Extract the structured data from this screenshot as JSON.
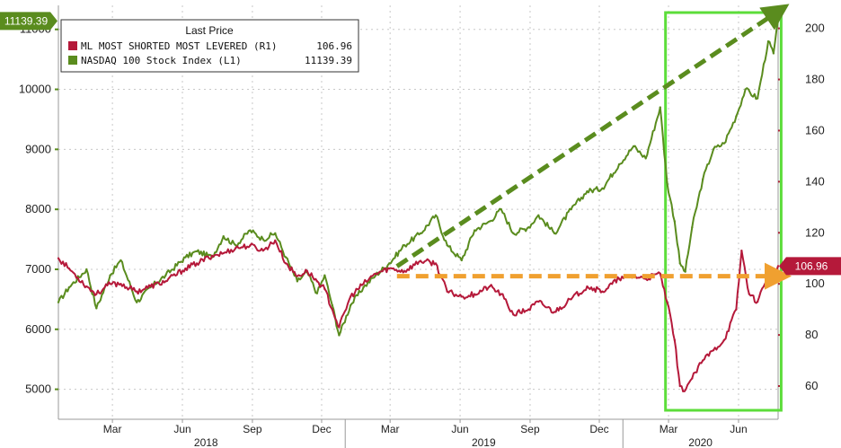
{
  "chart_data": {
    "type": "line",
    "legend": {
      "title": "Last Price",
      "placement": "top-left",
      "entries": [
        {
          "label": "ML MOST SHORTED MOST LEVERED (R1)",
          "value": "106.96",
          "color": "#b5193a"
        },
        {
          "label": "NASDAQ 100 Stock Index (L1)",
          "value": "11139.39",
          "color": "#5a8c1e"
        }
      ]
    },
    "last_value_badges": {
      "left": "11139.39",
      "right": "106.96"
    },
    "left_axis": {
      "ticks": [
        5000,
        6000,
        7000,
        8000,
        9000,
        10000,
        11000
      ],
      "range": [
        4500,
        11400
      ]
    },
    "right_axis": {
      "ticks": [
        60,
        80,
        100,
        120,
        140,
        160,
        180,
        200
      ],
      "range": [
        47,
        209
      ]
    },
    "x_axis": {
      "start": "2017-12-20",
      "end": "2020-07-23",
      "month_ticks": [
        {
          "label": "Mar",
          "date": "2018-03-01"
        },
        {
          "label": "Jun",
          "date": "2018-06-01"
        },
        {
          "label": "Sep",
          "date": "2018-09-01"
        },
        {
          "label": "Dec",
          "date": "2018-12-01"
        },
        {
          "label": "Mar",
          "date": "2019-03-01"
        },
        {
          "label": "Jun",
          "date": "2019-06-01"
        },
        {
          "label": "Sep",
          "date": "2019-09-01"
        },
        {
          "label": "Dec",
          "date": "2019-12-01"
        },
        {
          "label": "Mar",
          "date": "2020-03-01"
        },
        {
          "label": "Jun",
          "date": "2020-06-01"
        }
      ],
      "year_labels": [
        {
          "label": "2018",
          "start": "2018-01-01",
          "end": "2018-12-31"
        },
        {
          "label": "2019",
          "start": "2019-01-01",
          "end": "2019-12-31"
        },
        {
          "label": "2020",
          "start": "2020-01-01",
          "end": "2020-07-23"
        }
      ]
    },
    "grid": true,
    "series": [
      {
        "name": "NASDAQ 100 Stock Index",
        "axis": "left",
        "color": "#5a8c1e",
        "points": [
          [
            "2017-12-20",
            6450
          ],
          [
            "2018-01-03",
            6700
          ],
          [
            "2018-01-26",
            7000
          ],
          [
            "2018-02-08",
            6350
          ],
          [
            "2018-02-26",
            6900
          ],
          [
            "2018-03-12",
            7150
          ],
          [
            "2018-04-02",
            6450
          ],
          [
            "2018-04-20",
            6700
          ],
          [
            "2018-05-10",
            6900
          ],
          [
            "2018-06-05",
            7200
          ],
          [
            "2018-06-20",
            7300
          ],
          [
            "2018-07-10",
            7200
          ],
          [
            "2018-07-25",
            7550
          ],
          [
            "2018-08-10",
            7400
          ],
          [
            "2018-08-29",
            7650
          ],
          [
            "2018-09-15",
            7500
          ],
          [
            "2018-10-01",
            7600
          ],
          [
            "2018-10-15",
            7200
          ],
          [
            "2018-10-30",
            6800
          ],
          [
            "2018-11-12",
            6950
          ],
          [
            "2018-11-25",
            6600
          ],
          [
            "2018-12-05",
            6900
          ],
          [
            "2018-12-15",
            6400
          ],
          [
            "2018-12-24",
            5900
          ],
          [
            "2019-01-08",
            6400
          ],
          [
            "2019-01-25",
            6700
          ],
          [
            "2019-02-10",
            6900
          ],
          [
            "2019-02-28",
            7100
          ],
          [
            "2019-03-20",
            7400
          ],
          [
            "2019-04-10",
            7600
          ],
          [
            "2019-04-30",
            7900
          ],
          [
            "2019-05-15",
            7400
          ],
          [
            "2019-06-03",
            7150
          ],
          [
            "2019-06-20",
            7650
          ],
          [
            "2019-07-10",
            7800
          ],
          [
            "2019-07-25",
            8000
          ],
          [
            "2019-08-10",
            7600
          ],
          [
            "2019-08-30",
            7700
          ],
          [
            "2019-09-12",
            7900
          ],
          [
            "2019-10-03",
            7600
          ],
          [
            "2019-10-25",
            8000
          ],
          [
            "2019-11-15",
            8300
          ],
          [
            "2019-12-05",
            8350
          ],
          [
            "2019-12-27",
            8750
          ],
          [
            "2020-01-15",
            9050
          ],
          [
            "2020-01-31",
            8850
          ],
          [
            "2020-02-19",
            9700
          ],
          [
            "2020-02-28",
            8450
          ],
          [
            "2020-03-09",
            7800
          ],
          [
            "2020-03-16",
            7100
          ],
          [
            "2020-03-23",
            6960
          ],
          [
            "2020-04-01",
            7700
          ],
          [
            "2020-04-15",
            8500
          ],
          [
            "2020-04-29",
            9000
          ],
          [
            "2020-05-13",
            9100
          ],
          [
            "2020-05-29",
            9550
          ],
          [
            "2020-06-10",
            10000
          ],
          [
            "2020-06-26",
            9850
          ],
          [
            "2020-07-10",
            10800
          ],
          [
            "2020-07-17",
            10600
          ],
          [
            "2020-07-23",
            11139.39
          ]
        ]
      },
      {
        "name": "ML MOST SHORTED MOST LEVERED",
        "axis": "right",
        "color": "#b5193a",
        "points": [
          [
            "2017-12-20",
            110
          ],
          [
            "2018-01-03",
            106
          ],
          [
            "2018-01-26",
            99
          ],
          [
            "2018-02-08",
            96
          ],
          [
            "2018-02-26",
            100
          ],
          [
            "2018-03-12",
            100
          ],
          [
            "2018-04-02",
            97
          ],
          [
            "2018-04-20",
            99
          ],
          [
            "2018-05-10",
            101
          ],
          [
            "2018-06-05",
            106
          ],
          [
            "2018-06-20",
            108
          ],
          [
            "2018-07-10",
            111
          ],
          [
            "2018-07-25",
            112
          ],
          [
            "2018-08-10",
            114
          ],
          [
            "2018-08-29",
            115
          ],
          [
            "2018-09-15",
            113
          ],
          [
            "2018-10-01",
            117
          ],
          [
            "2018-10-15",
            108
          ],
          [
            "2018-10-30",
            103
          ],
          [
            "2018-11-12",
            105
          ],
          [
            "2018-11-25",
            101
          ],
          [
            "2018-12-05",
            98
          ],
          [
            "2018-12-15",
            90
          ],
          [
            "2018-12-24",
            83
          ],
          [
            "2019-01-08",
            95
          ],
          [
            "2019-01-25",
            100
          ],
          [
            "2019-02-10",
            104
          ],
          [
            "2019-02-28",
            106
          ],
          [
            "2019-03-20",
            105
          ],
          [
            "2019-04-10",
            109
          ],
          [
            "2019-04-30",
            108
          ],
          [
            "2019-05-15",
            97
          ],
          [
            "2019-06-03",
            95
          ],
          [
            "2019-06-20",
            96
          ],
          [
            "2019-07-10",
            99
          ],
          [
            "2019-07-25",
            96
          ],
          [
            "2019-08-10",
            88
          ],
          [
            "2019-08-30",
            90
          ],
          [
            "2019-09-12",
            93
          ],
          [
            "2019-10-03",
            89
          ],
          [
            "2019-10-25",
            94
          ],
          [
            "2019-11-15",
            99
          ],
          [
            "2019-12-05",
            97
          ],
          [
            "2019-12-27",
            102
          ],
          [
            "2020-01-15",
            103
          ],
          [
            "2020-01-31",
            102
          ],
          [
            "2020-02-19",
            104
          ],
          [
            "2020-02-28",
            93
          ],
          [
            "2020-03-09",
            78
          ],
          [
            "2020-03-16",
            60
          ],
          [
            "2020-03-20",
            58
          ],
          [
            "2020-04-01",
            63
          ],
          [
            "2020-04-15",
            70
          ],
          [
            "2020-04-29",
            74
          ],
          [
            "2020-05-13",
            78
          ],
          [
            "2020-05-29",
            90
          ],
          [
            "2020-06-05",
            113
          ],
          [
            "2020-06-15",
            96
          ],
          [
            "2020-06-26",
            93
          ],
          [
            "2020-07-10",
            104
          ],
          [
            "2020-07-17",
            101
          ],
          [
            "2020-07-23",
            106.96
          ]
        ]
      }
    ],
    "annotations": [
      {
        "kind": "dashed-arrow",
        "color": "#5a8c1e",
        "axis": "left",
        "from": [
          "2019-03-10",
          7050
        ],
        "to": [
          "2020-07-23",
          11300
        ]
      },
      {
        "kind": "dashed-arrow",
        "color": "#f0a030",
        "axis": "right",
        "from": [
          "2019-03-10",
          103
        ],
        "to": [
          "2020-07-23",
          103
        ]
      },
      {
        "kind": "highlight-box",
        "color": "#5cdd3a",
        "x_from": "2020-02-26",
        "x_to": "2020-07-27"
      }
    ]
  }
}
